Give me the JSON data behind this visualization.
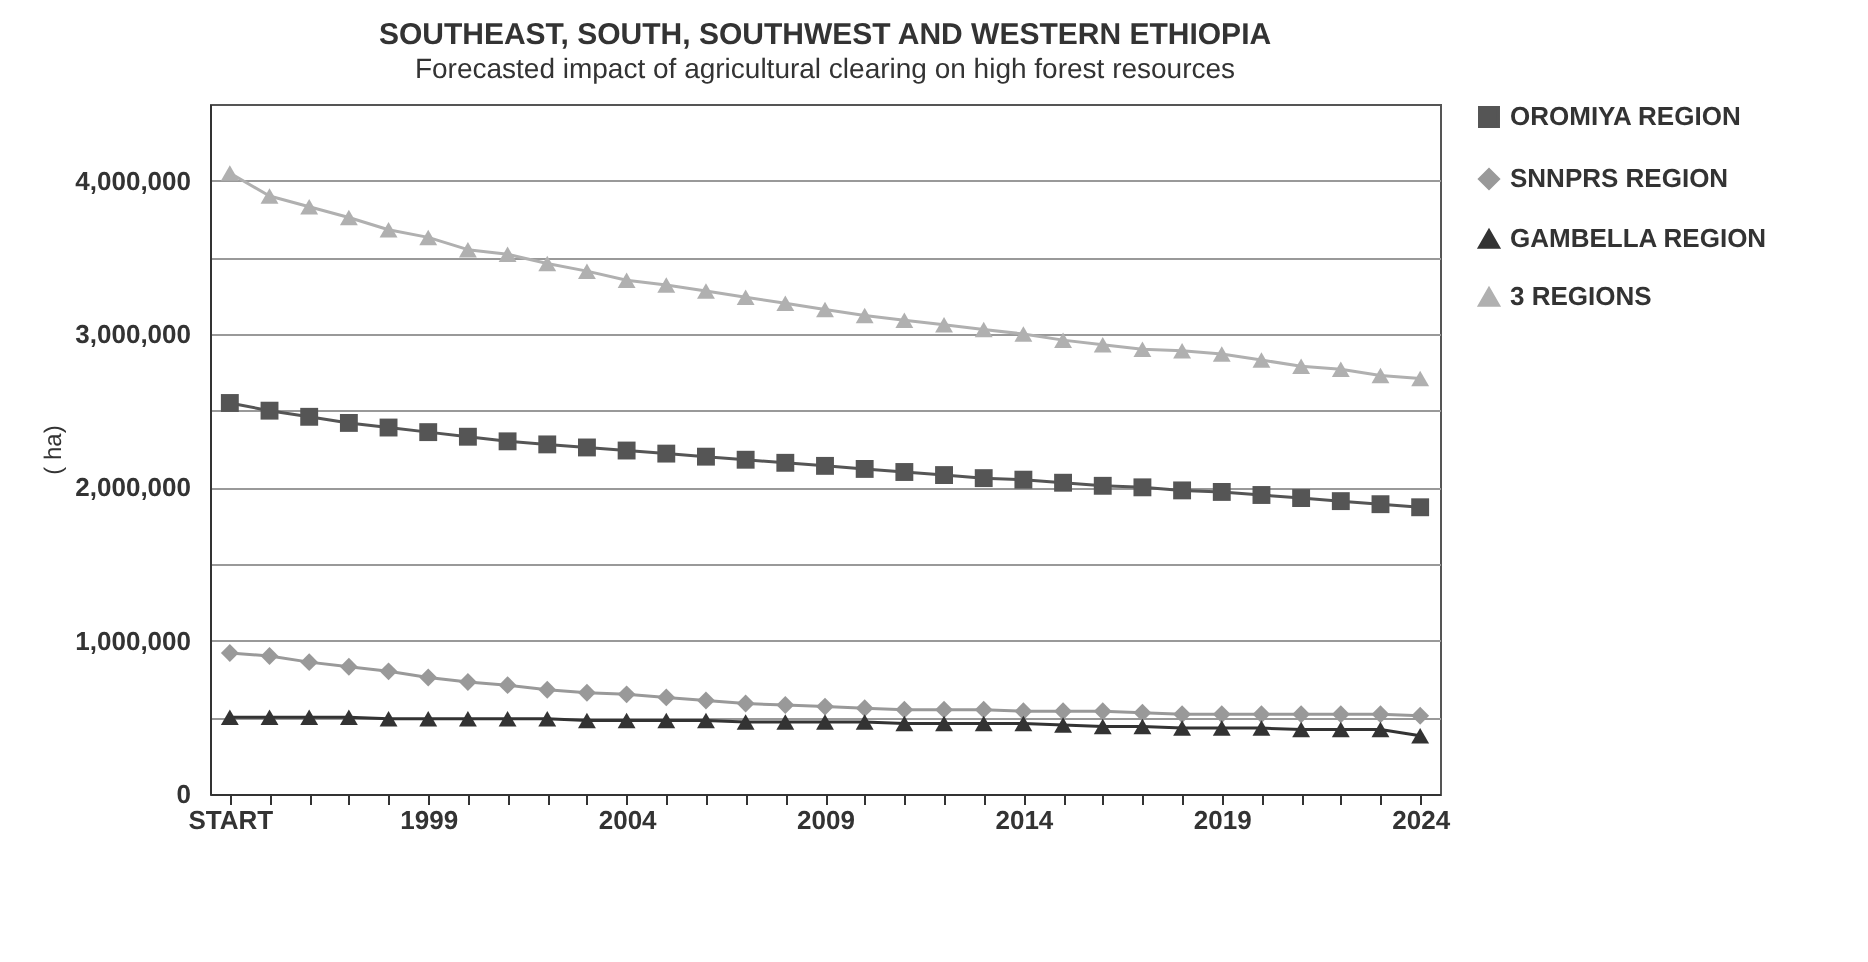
{
  "chart_data": {
    "type": "line",
    "title": "SOUTHEAST, SOUTH, SOUTHWEST AND WESTERN ETHIOPIA",
    "subtitle": "Forecasted impact of agricultural clearing on high forest resources",
    "ylabel": "( ha)",
    "categories": [
      "START",
      null,
      null,
      null,
      null,
      "1999",
      null,
      null,
      null,
      null,
      "2004",
      null,
      null,
      null,
      null,
      "2009",
      null,
      null,
      null,
      null,
      "2014",
      null,
      null,
      null,
      null,
      "2019",
      null,
      null,
      null,
      null,
      "2024"
    ],
    "series": [
      {
        "name": "OROMIYA REGION",
        "color": "#555555",
        "marker": "square",
        "values": [
          2550000,
          2500000,
          2460000,
          2420000,
          2390000,
          2360000,
          2330000,
          2300000,
          2280000,
          2260000,
          2240000,
          2220000,
          2200000,
          2180000,
          2160000,
          2140000,
          2120000,
          2100000,
          2080000,
          2060000,
          2050000,
          2030000,
          2010000,
          2000000,
          1980000,
          1970000,
          1950000,
          1930000,
          1910000,
          1890000,
          1870000
        ]
      },
      {
        "name": "SNNPRS REGION",
        "color": "#999999",
        "marker": "diamond",
        "values": [
          920000,
          900000,
          860000,
          830000,
          800000,
          760000,
          730000,
          710000,
          680000,
          660000,
          650000,
          630000,
          610000,
          590000,
          580000,
          570000,
          560000,
          550000,
          550000,
          550000,
          540000,
          540000,
          540000,
          530000,
          520000,
          520000,
          520000,
          520000,
          520000,
          520000,
          510000
        ]
      },
      {
        "name": "GAMBELLA REGION",
        "color": "#333333",
        "marker": "triangle",
        "values": [
          500000,
          500000,
          500000,
          500000,
          490000,
          490000,
          490000,
          490000,
          490000,
          480000,
          480000,
          480000,
          480000,
          470000,
          470000,
          470000,
          470000,
          460000,
          460000,
          460000,
          460000,
          450000,
          440000,
          440000,
          430000,
          430000,
          430000,
          420000,
          420000,
          420000,
          380000
        ]
      },
      {
        "name": "3 REGIONS",
        "color": "#b0b0b0",
        "marker": "triangle",
        "values": [
          4050000,
          3900000,
          3830000,
          3760000,
          3680000,
          3630000,
          3550000,
          3520000,
          3460000,
          3410000,
          3350000,
          3320000,
          3280000,
          3240000,
          3200000,
          3160000,
          3120000,
          3090000,
          3060000,
          3030000,
          3000000,
          2960000,
          2930000,
          2900000,
          2890000,
          2870000,
          2830000,
          2790000,
          2770000,
          2730000,
          2710000
        ]
      }
    ],
    "ylim": [
      0,
      4500000
    ],
    "yticks": [
      0,
      {
        "value": 500000,
        "label": null
      },
      "1,000,000",
      {
        "value": 1500000,
        "label": null
      },
      {
        "value": 2000000,
        "label": "2,000,000"
      },
      {
        "value": 2500000,
        "label": null
      },
      {
        "value": 3000000,
        "label": "3,000,000"
      },
      {
        "value": 3500000,
        "label": null
      },
      {
        "value": 4000000,
        "label": "4,000,000"
      }
    ],
    "grid": "y",
    "legend": "right"
  }
}
